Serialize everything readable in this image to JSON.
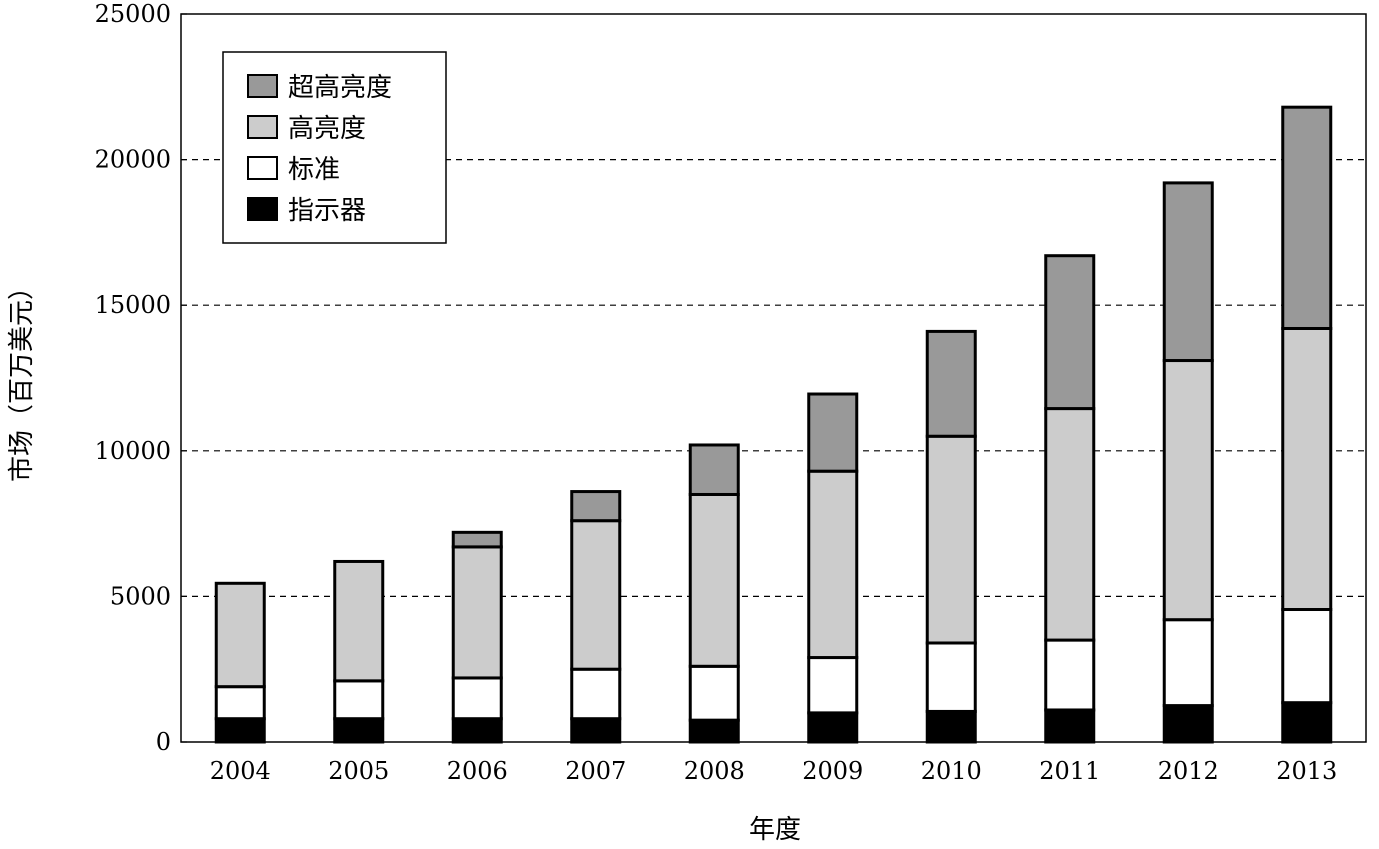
{
  "chart_data": {
    "type": "bar",
    "stacked": true,
    "title": "",
    "xlabel": "年度",
    "ylabel": "市场（百万美元）",
    "ylim": [
      0,
      25000
    ],
    "yticks": [
      0,
      5000,
      10000,
      15000,
      20000,
      25000
    ],
    "grid": "horizontal dashed",
    "legend_position": "top-left",
    "categories": [
      "2004",
      "2005",
      "2006",
      "2007",
      "2008",
      "2009",
      "2010",
      "2011",
      "2012",
      "2013"
    ],
    "series": [
      {
        "name": "指示器",
        "color": "#000000",
        "values": [
          800,
          800,
          800,
          800,
          750,
          1000,
          1050,
          1100,
          1250,
          1350
        ]
      },
      {
        "name": "标准",
        "color": "#ffffff",
        "values": [
          1100,
          1300,
          1400,
          1700,
          1850,
          1900,
          2350,
          2400,
          2950,
          3200
        ]
      },
      {
        "name": "高亮度",
        "color": "#cccccc",
        "values": [
          3550,
          4100,
          4500,
          5100,
          5900,
          6400,
          7100,
          7950,
          8900,
          9650
        ]
      },
      {
        "name": "超高亮度",
        "color": "#999999",
        "values": [
          0,
          0,
          500,
          1000,
          1700,
          2650,
          3600,
          5250,
          6100,
          7600
        ]
      }
    ]
  }
}
